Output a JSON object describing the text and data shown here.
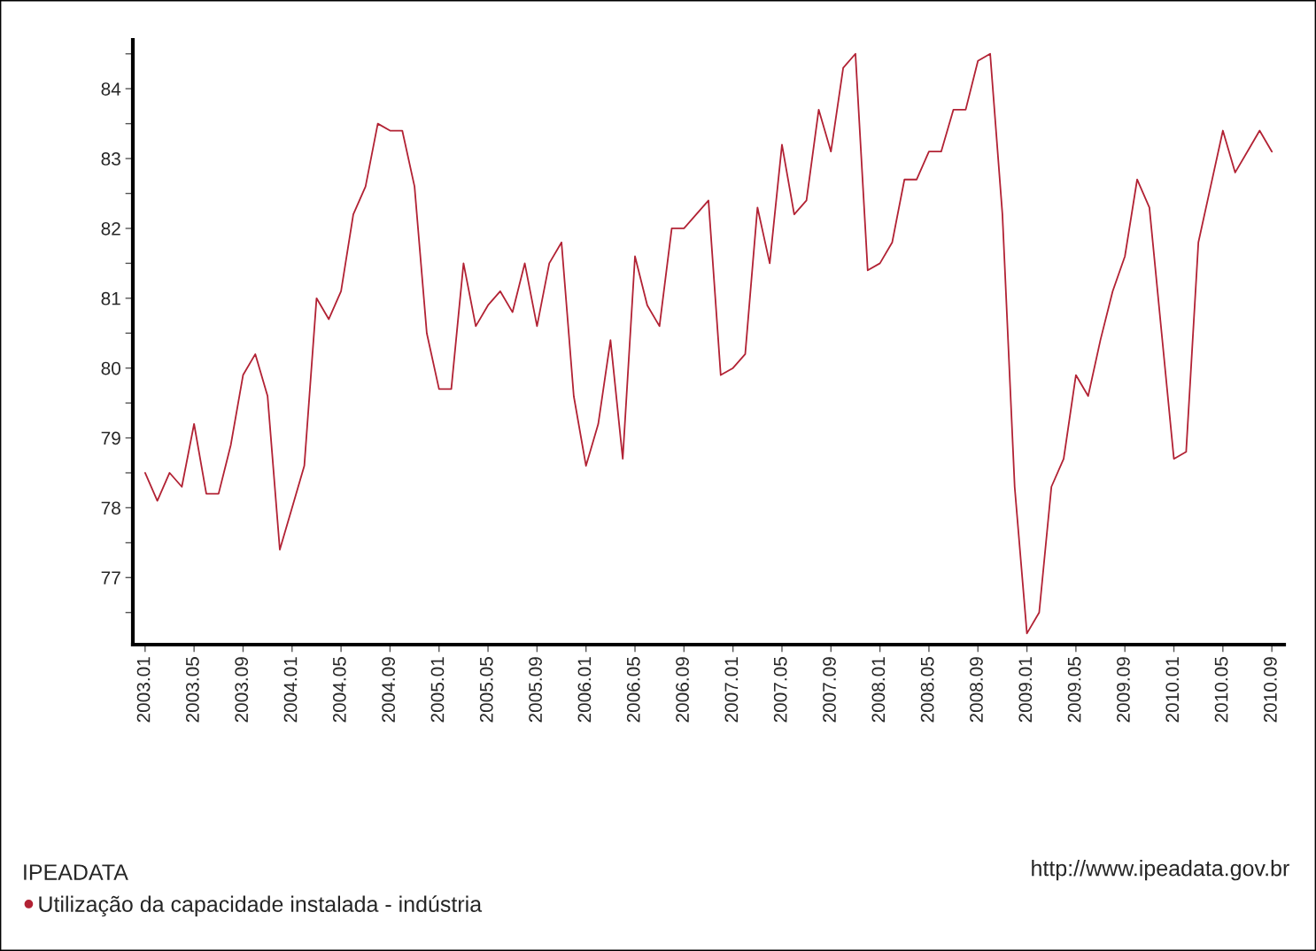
{
  "chart_data": {
    "type": "line",
    "x": [
      "2003-01",
      "2003-02",
      "2003-03",
      "2003-04",
      "2003-05",
      "2003-06",
      "2003-07",
      "2003-08",
      "2003-09",
      "2003-10",
      "2003-11",
      "2003-12",
      "2004-01",
      "2004-02",
      "2004-03",
      "2004-04",
      "2004-05",
      "2004-06",
      "2004-07",
      "2004-08",
      "2004-09",
      "2004-10",
      "2004-11",
      "2004-12",
      "2005-01",
      "2005-02",
      "2005-03",
      "2005-04",
      "2005-05",
      "2005-06",
      "2005-07",
      "2005-08",
      "2005-09",
      "2005-10",
      "2005-11",
      "2005-12",
      "2006-01",
      "2006-02",
      "2006-03",
      "2006-04",
      "2006-05",
      "2006-06",
      "2006-07",
      "2006-08",
      "2006-09",
      "2006-10",
      "2006-11",
      "2006-12",
      "2007-01",
      "2007-02",
      "2007-03",
      "2007-04",
      "2007-05",
      "2007-06",
      "2007-07",
      "2007-08",
      "2007-09",
      "2007-10",
      "2007-11",
      "2007-12",
      "2008-01",
      "2008-02",
      "2008-03",
      "2008-04",
      "2008-05",
      "2008-06",
      "2008-07",
      "2008-08",
      "2008-09",
      "2008-10",
      "2008-11",
      "2008-12",
      "2009-01",
      "2009-02",
      "2009-03",
      "2009-04",
      "2009-05",
      "2009-06",
      "2009-07",
      "2009-08",
      "2009-09",
      "2009-10",
      "2009-11",
      "2009-12",
      "2010-01",
      "2010-02",
      "2010-03",
      "2010-04",
      "2010-05",
      "2010-06",
      "2010-07",
      "2010-08",
      "2010-09"
    ],
    "series": [
      {
        "name": "Utilização da capacidade instalada - indústria",
        "color": "#b22234",
        "values": [
          78.5,
          78.1,
          78.5,
          78.3,
          79.2,
          78.2,
          78.2,
          78.9,
          79.9,
          80.2,
          79.6,
          77.4,
          78.0,
          78.6,
          81.0,
          80.7,
          81.1,
          82.2,
          82.6,
          83.5,
          83.4,
          83.4,
          82.6,
          80.5,
          79.7,
          79.7,
          81.5,
          80.6,
          80.9,
          81.1,
          80.8,
          81.5,
          80.6,
          81.5,
          81.8,
          79.6,
          78.6,
          79.2,
          80.4,
          78.7,
          81.6,
          80.9,
          80.6,
          82.0,
          82.0,
          82.2,
          82.4,
          79.9,
          80.0,
          80.2,
          82.3,
          81.5,
          83.2,
          82.2,
          82.4,
          83.7,
          83.1,
          84.3,
          84.5,
          81.4,
          81.5,
          81.8,
          82.7,
          82.7,
          83.1,
          83.1,
          83.7,
          83.7,
          84.4,
          84.5,
          82.2,
          78.3,
          76.2,
          76.5,
          78.3,
          78.7,
          79.9,
          79.6,
          80.4,
          81.1,
          81.6,
          82.7,
          82.3,
          80.5,
          78.7,
          78.8,
          81.8,
          82.6,
          83.4,
          82.8,
          83.1,
          83.4,
          83.1
        ]
      }
    ],
    "xlim": [
      "2002-12",
      "2010-10"
    ],
    "xticks": [
      {
        "value": "2003-01",
        "label": "2003.01"
      },
      {
        "value": "2003-05",
        "label": "2003.05"
      },
      {
        "value": "2003-09",
        "label": "2003.09"
      },
      {
        "value": "2004-01",
        "label": "2004.01"
      },
      {
        "value": "2004-05",
        "label": "2004.05"
      },
      {
        "value": "2004-09",
        "label": "2004.09"
      },
      {
        "value": "2005-01",
        "label": "2005.01"
      },
      {
        "value": "2005-05",
        "label": "2005.05"
      },
      {
        "value": "2005-09",
        "label": "2005.09"
      },
      {
        "value": "2006-01",
        "label": "2006.01"
      },
      {
        "value": "2006-05",
        "label": "2006.05"
      },
      {
        "value": "2006-09",
        "label": "2006.09"
      },
      {
        "value": "2007-01",
        "label": "2007.01"
      },
      {
        "value": "2007-05",
        "label": "2007.05"
      },
      {
        "value": "2007-09",
        "label": "2007.09"
      },
      {
        "value": "2008-01",
        "label": "2008.01"
      },
      {
        "value": "2008-05",
        "label": "2008.05"
      },
      {
        "value": "2008-09",
        "label": "2008.09"
      },
      {
        "value": "2009-01",
        "label": "2009.01"
      },
      {
        "value": "2009-05",
        "label": "2009.05"
      },
      {
        "value": "2009-09",
        "label": "2009.09"
      },
      {
        "value": "2010-01",
        "label": "2010.01"
      },
      {
        "value": "2010-05",
        "label": "2010.05"
      },
      {
        "value": "2010-09",
        "label": "2010.09"
      }
    ],
    "ylim": [
      76.04,
      84.7
    ],
    "yticks": [
      {
        "value": 76.5,
        "label": null
      },
      77,
      {
        "value": 77.5,
        "label": null
      },
      78,
      {
        "value": 78.5,
        "label": null
      },
      79,
      {
        "value": 79.5,
        "label": null
      },
      80,
      {
        "value": 80.5,
        "label": null
      },
      81,
      {
        "value": 81.5,
        "label": null
      },
      82,
      {
        "value": 82.5,
        "label": null
      },
      83,
      {
        "value": 83.5,
        "label": null
      },
      84,
      {
        "value": 84.5,
        "label": null
      }
    ],
    "legend_title": "IPEADATA",
    "legend": "bottom left",
    "annotations": [
      "http://www.ipeadata.gov.br"
    ],
    "grid": false,
    "marker": "none",
    "line_style": "solid"
  }
}
